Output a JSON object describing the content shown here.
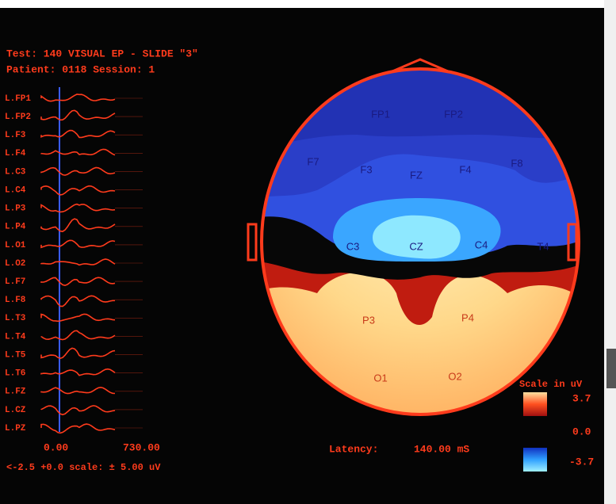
{
  "header": {
    "test": "Test:  140  VISUAL EP - SLIDE \"3\"",
    "patient": "Patient: 0118    Session:  1"
  },
  "channels": [
    "L.FP1",
    "L.FP2",
    "L.F3",
    "L.F4",
    "L.C3",
    "L.C4",
    "L.P3",
    "L.P4",
    "L.O1",
    "L.O2",
    "L.F7",
    "L.F8",
    "L.T3",
    "L.T4",
    "L.T5",
    "L.T6",
    "L.FZ",
    "L.CZ",
    "L.PZ"
  ],
  "time_axis": {
    "start": "0.00",
    "end": "730.00",
    "scale": "<-2.5 +0.0 scale: ± 5.00 uV"
  },
  "map": {
    "electrodes": [
      "FP1",
      "FP2",
      "F7",
      "F3",
      "FZ",
      "F4",
      "F8",
      "C3",
      "CZ",
      "C4",
      "T4",
      "P3",
      "P4",
      "O1",
      "O2"
    ],
    "latency_label": "Latency:",
    "latency_value": "140.00 mS"
  },
  "legend": {
    "title": "Scale in uV",
    "max": "3.7",
    "mid": "0.0",
    "min": "-3.7"
  }
}
